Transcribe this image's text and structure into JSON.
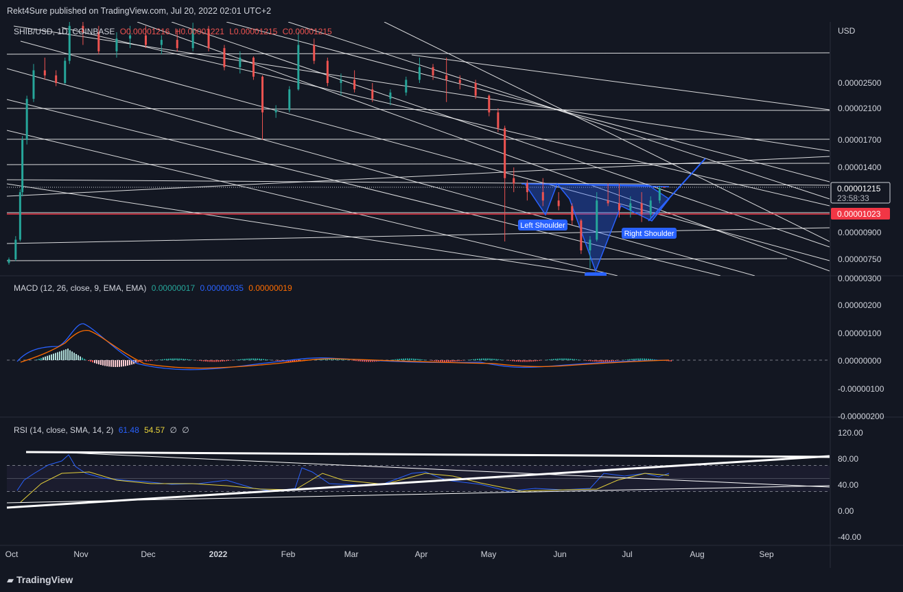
{
  "header": {
    "publisher_line": "Rekt4Sure published on TradingView.com, Jul 20, 2022 02:01 UTC+2"
  },
  "footer": {
    "brand": "TradingView"
  },
  "colors": {
    "background": "#131722",
    "up": "#26a69a",
    "down": "#ef5350",
    "pattern": "#2962ff",
    "support": "#f23645",
    "rsi": "#2962ff",
    "rsi_ma": "#e7d23b",
    "macd_line": "#2962ff",
    "signal_line": "#ff6d00"
  },
  "chart_data": [
    {
      "type": "candlestick",
      "symbol_legend": {
        "symbol": "SHIB/USD, 1D, COINBASE",
        "open": "O0.00001216",
        "high": "H0.00001221",
        "low": "L0.00001215",
        "close": "C0.00001215"
      },
      "currency": "USD",
      "y_ticks": [
        "0.00002500",
        "0.00002100",
        "0.00001700",
        "0.00001400",
        "0.00001215",
        "0.00001023",
        "0.00000900",
        "0.00000750"
      ],
      "last_price": "0.00001215",
      "countdown": "23:58:33",
      "support_level": "0.00001023",
      "x_ticks": [
        "Oct",
        "Nov",
        "Dec",
        "2022",
        "Feb",
        "Mar",
        "Apr",
        "May",
        "Jun",
        "Jul",
        "Aug",
        "Sep"
      ],
      "annotations": [
        "Left Shoulder",
        "Right Shoulder"
      ],
      "candles": [
        {
          "date": "Oct 1",
          "o": 7.3e-06,
          "h": 7.6e-06,
          "l": 7.2e-06,
          "c": 7.5e-06
        },
        {
          "date": "Oct 4",
          "o": 7.5e-06,
          "h": 8.8e-06,
          "l": 7.4e-06,
          "c": 8.6e-06
        },
        {
          "date": "Oct 6",
          "o": 8.6e-06,
          "h": 1.2e-05,
          "l": 8.5e-06,
          "c": 1.18e-05
        },
        {
          "date": "Oct 7",
          "o": 1.18e-05,
          "h": 1.75e-05,
          "l": 1.15e-05,
          "c": 1.7e-05
        },
        {
          "date": "Oct 9",
          "o": 1.7e-05,
          "h": 2.3e-05,
          "l": 1.65e-05,
          "c": 2.25e-05
        },
        {
          "date": "Oct 12",
          "o": 2.25e-05,
          "h": 2.8e-05,
          "l": 2.2e-05,
          "c": 2.7e-05
        },
        {
          "date": "Oct 17",
          "o": 2.7e-05,
          "h": 2.9e-05,
          "l": 2.55e-05,
          "c": 2.62e-05
        },
        {
          "date": "Oct 22",
          "o": 2.62e-05,
          "h": 2.7e-05,
          "l": 2.45e-05,
          "c": 2.5e-05
        },
        {
          "date": "Oct 26",
          "o": 2.5e-05,
          "h": 2.9e-05,
          "l": 2.48e-05,
          "c": 2.85e-05
        },
        {
          "date": "Oct 28",
          "o": 2.85e-05,
          "h": 3.5e-05,
          "l": 2.8e-05,
          "c": 3.4e-05
        },
        {
          "date": "Nov 3",
          "o": 3.4e-05,
          "h": 3.6e-05,
          "l": 3.1e-05,
          "c": 3.3e-05
        },
        {
          "date": "Nov 10",
          "o": 3.3e-05,
          "h": 3.4e-05,
          "l": 2.95e-05,
          "c": 3e-05
        },
        {
          "date": "Nov 18",
          "o": 3e-05,
          "h": 3.3e-05,
          "l": 2.9e-05,
          "c": 3.2e-05
        },
        {
          "date": "Nov 24",
          "o": 3.2e-05,
          "h": 3.4e-05,
          "l": 3.05e-05,
          "c": 3.25e-05
        },
        {
          "date": "Dec 1",
          "o": 3.25e-05,
          "h": 3.4e-05,
          "l": 3.05e-05,
          "c": 3.1e-05
        },
        {
          "date": "Dec 8",
          "o": 3.1e-05,
          "h": 3.25e-05,
          "l": 2.95e-05,
          "c": 3.18e-05
        },
        {
          "date": "Dec 15",
          "o": 3.18e-05,
          "h": 3.35e-05,
          "l": 3e-05,
          "c": 3.05e-05
        },
        {
          "date": "Dec 22",
          "o": 3.05e-05,
          "h": 3.45e-05,
          "l": 3e-05,
          "c": 3.35e-05
        },
        {
          "date": "Dec 29",
          "o": 3.35e-05,
          "h": 3.4e-05,
          "l": 3e-05,
          "c": 3.05e-05
        },
        {
          "date": "Jan 5",
          "o": 3.05e-05,
          "h": 3.1e-05,
          "l": 2.7e-05,
          "c": 2.75e-05
        },
        {
          "date": "Jan 12",
          "o": 2.75e-05,
          "h": 3e-05,
          "l": 2.65e-05,
          "c": 2.9e-05
        },
        {
          "date": "Jan 18",
          "o": 2.9e-05,
          "h": 2.92e-05,
          "l": 2.55e-05,
          "c": 2.6e-05
        },
        {
          "date": "Jan 22",
          "o": 2.6e-05,
          "h": 2.62e-05,
          "l": 1.7e-05,
          "c": 2.05e-05
        },
        {
          "date": "Jan 28",
          "o": 2.05e-05,
          "h": 2.15e-05,
          "l": 1.98e-05,
          "c": 2.08e-05
        },
        {
          "date": "Feb 3",
          "o": 2.08e-05,
          "h": 2.45e-05,
          "l": 2.05e-05,
          "c": 2.4e-05
        },
        {
          "date": "Feb 7",
          "o": 2.4e-05,
          "h": 3.3e-05,
          "l": 2.38e-05,
          "c": 3.1e-05
        },
        {
          "date": "Feb 14",
          "o": 3.1e-05,
          "h": 3.2e-05,
          "l": 2.8e-05,
          "c": 2.85e-05
        },
        {
          "date": "Feb 20",
          "o": 2.85e-05,
          "h": 2.9e-05,
          "l": 2.45e-05,
          "c": 2.5e-05
        },
        {
          "date": "Feb 26",
          "o": 2.5e-05,
          "h": 2.65e-05,
          "l": 2.3e-05,
          "c": 2.55e-05
        },
        {
          "date": "Mar 4",
          "o": 2.55e-05,
          "h": 2.7e-05,
          "l": 2.35e-05,
          "c": 2.4e-05
        },
        {
          "date": "Mar 12",
          "o": 2.4e-05,
          "h": 2.5e-05,
          "l": 2.2e-05,
          "c": 2.25e-05
        },
        {
          "date": "Mar 20",
          "o": 2.25e-05,
          "h": 2.4e-05,
          "l": 2.15e-05,
          "c": 2.35e-05
        },
        {
          "date": "Mar 27",
          "o": 2.35e-05,
          "h": 2.6e-05,
          "l": 2.3e-05,
          "c": 2.55e-05
        },
        {
          "date": "Apr 2",
          "o": 2.55e-05,
          "h": 2.9e-05,
          "l": 2.5e-05,
          "c": 2.75e-05
        },
        {
          "date": "Apr 8",
          "o": 2.75e-05,
          "h": 2.8e-05,
          "l": 2.55e-05,
          "c": 2.62e-05
        },
        {
          "date": "Apr 14",
          "o": 2.62e-05,
          "h": 2.9e-05,
          "l": 2.2e-05,
          "c": 2.55e-05
        },
        {
          "date": "Apr 20",
          "o": 2.55e-05,
          "h": 2.62e-05,
          "l": 2.4e-05,
          "c": 2.5e-05
        },
        {
          "date": "Apr 27",
          "o": 2.5e-05,
          "h": 2.55e-05,
          "l": 2.25e-05,
          "c": 2.3e-05
        },
        {
          "date": "May 3",
          "o": 2.3e-05,
          "h": 2.32e-05,
          "l": 2e-05,
          "c": 2.05e-05
        },
        {
          "date": "May 7",
          "o": 2.05e-05,
          "h": 2.1e-05,
          "l": 1.8e-05,
          "c": 1.85e-05
        },
        {
          "date": "May 10",
          "o": 1.85e-05,
          "h": 1.88e-05,
          "l": 8.5e-06,
          "c": 1.3e-05
        },
        {
          "date": "May 14",
          "o": 1.3e-05,
          "h": 1.4e-05,
          "l": 1.18e-05,
          "c": 1.25e-05
        },
        {
          "date": "May 20",
          "o": 1.25e-05,
          "h": 1.28e-05,
          "l": 1.12e-05,
          "c": 1.18e-05
        },
        {
          "date": "May 27",
          "o": 1.18e-05,
          "h": 1.3e-05,
          "l": 1.08e-05,
          "c": 1.12e-05
        },
        {
          "date": "Jun 3",
          "o": 1.12e-05,
          "h": 1.18e-05,
          "l": 1.05e-05,
          "c": 1.08e-05
        },
        {
          "date": "Jun 9",
          "o": 1.08e-05,
          "h": 1.1e-05,
          "l": 9.5e-06,
          "c": 9.8e-06
        },
        {
          "date": "Jun 13",
          "o": 9.8e-06,
          "h": 9.9e-06,
          "l": 7.8e-06,
          "c": 8e-06
        },
        {
          "date": "Jun 17",
          "o": 8e-06,
          "h": 8.8e-06,
          "l": 7e-06,
          "c": 8.6e-06
        },
        {
          "date": "Jun 20",
          "o": 8.6e-06,
          "h": 1.18e-05,
          "l": 8.5e-06,
          "c": 1.12e-05
        },
        {
          "date": "Jun 25",
          "o": 1.12e-05,
          "h": 1.25e-05,
          "l": 1.08e-05,
          "c": 1.1e-05
        },
        {
          "date": "Jun 30",
          "o": 1.1e-05,
          "h": 1.25e-05,
          "l": 1e-05,
          "c": 1.05e-05
        },
        {
          "date": "Jul 5",
          "o": 1.05e-05,
          "h": 1.15e-05,
          "l": 1e-05,
          "c": 1.1e-05
        },
        {
          "date": "Jul 10",
          "o": 1.1e-05,
          "h": 1.18e-05,
          "l": 9.7e-06,
          "c": 1.02e-05
        },
        {
          "date": "Jul 14",
          "o": 1.02e-05,
          "h": 1.15e-05,
          "l": 1e-05,
          "c": 1.12e-05
        },
        {
          "date": "Jul 18",
          "o": 1.12e-05,
          "h": 1.23e-05,
          "l": 1.1e-05,
          "c": 1.21e-05
        },
        {
          "date": "Jul 20",
          "o": 1.216e-05,
          "h": 1.221e-05,
          "l": 1.215e-05,
          "c": 1.215e-05
        }
      ]
    },
    {
      "type": "macd",
      "legend": {
        "label": "MACD (12, 26, close, 9, EMA, EMA)",
        "histogram": "0.00000017",
        "macd": "0.00000035",
        "signal": "0.00000019"
      },
      "y_ticks": [
        "0.00000300",
        "0.00000200",
        "0.00000100",
        "0.00000000",
        "-0.00000100",
        "-0.00000200"
      ]
    },
    {
      "type": "rsi",
      "legend": {
        "label": "RSI (14, close, SMA, 14, 2)",
        "rsi": "61.48",
        "rsi_ma": "54.57",
        "extra1": "∅",
        "extra2": "∅"
      },
      "y_ticks": [
        "120.00",
        "80.00",
        "40.00",
        "0.00",
        "-40.00"
      ],
      "bands": {
        "upper": 70,
        "middle": 50,
        "lower": 30
      }
    }
  ]
}
